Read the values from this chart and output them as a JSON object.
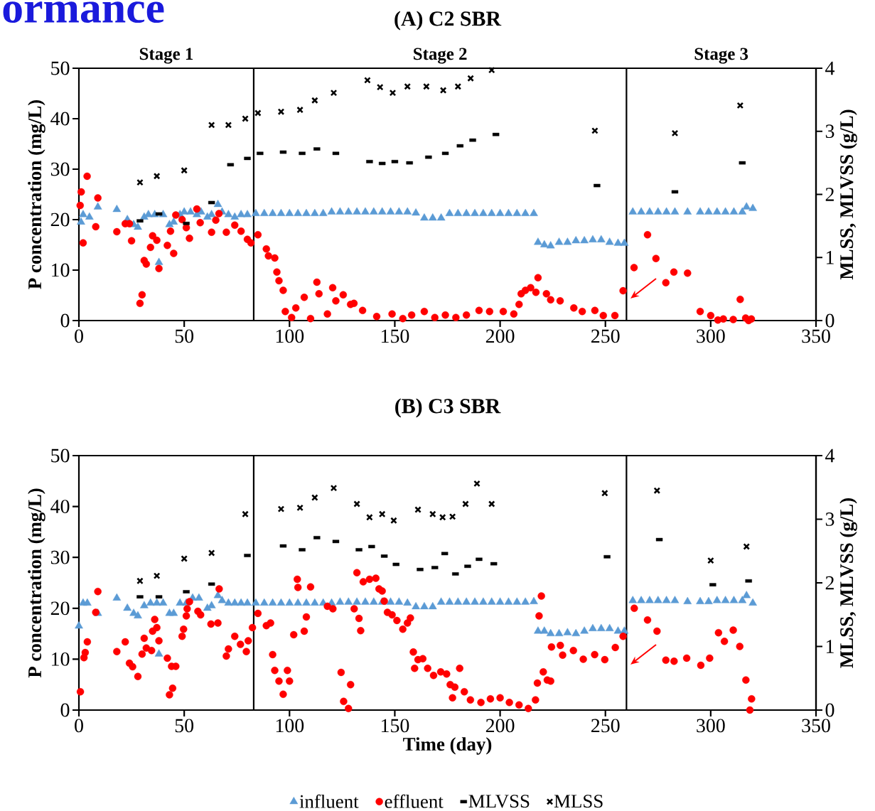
{
  "chart_data": [
    {
      "type": "scatter",
      "title": "(A) C2 SBR",
      "ylabel": "P concentration (mg/L)",
      "y2label": "MLSS, MLVSS (g/L)",
      "annotations": [
        "ormance",
        "Stage 1",
        "Stage 2",
        "Stage 3"
      ],
      "xlim": [
        0,
        350
      ],
      "xticks": [
        0,
        50,
        100,
        150,
        200,
        250,
        300,
        350
      ],
      "ylim": [
        0,
        50
      ],
      "yticks": [
        0,
        10,
        20,
        30,
        40,
        50
      ],
      "y2lim": [
        0,
        4
      ],
      "y2ticks": [
        0,
        1,
        2,
        3,
        4
      ],
      "ref_lines": [
        {
          "axis": "x",
          "value": 83,
          "color": "#000000"
        },
        {
          "axis": "x",
          "value": 260,
          "color": "#000000"
        }
      ],
      "series": [
        {
          "color": "#5b9bd5",
          "marker": "triangle",
          "x": [
            1,
            2,
            5,
            9,
            18,
            23,
            26,
            28,
            31,
            33,
            36,
            38,
            40,
            43,
            45,
            48,
            50,
            53,
            56,
            58,
            61,
            63,
            66,
            68,
            71,
            74,
            77,
            80,
            84,
            88,
            92,
            96,
            100,
            104,
            108,
            112,
            116,
            120,
            124,
            128,
            132,
            136,
            140,
            144,
            148,
            152,
            156,
            160,
            164,
            168,
            172,
            176,
            180,
            184,
            188,
            192,
            196,
            200,
            204,
            208,
            212,
            216,
            218,
            221,
            224,
            228,
            232,
            236,
            240,
            244,
            248,
            252,
            256,
            259,
            263,
            267,
            271,
            275,
            279,
            283,
            289,
            295,
            299,
            303,
            307,
            311,
            315,
            317,
            320
          ],
          "values": [
            19.5,
            21,
            20.5,
            22.5,
            22,
            20,
            19,
            18.5,
            20.5,
            21,
            21,
            11.5,
            21,
            19,
            19.5,
            21,
            21.5,
            21.5,
            21,
            21.5,
            20.5,
            21,
            23,
            21.5,
            21,
            20.5,
            21,
            21,
            21.2,
            21.2,
            21.2,
            21.2,
            21.2,
            21.2,
            21.2,
            21.2,
            21.2,
            21.5,
            21.5,
            21.5,
            21.5,
            21.5,
            21.5,
            21.5,
            21.5,
            21.5,
            21.5,
            21.3,
            20.3,
            20.3,
            20.3,
            21.2,
            21.2,
            21.2,
            21.2,
            21.2,
            21.2,
            21.2,
            21.2,
            21.2,
            21.2,
            21.2,
            15.5,
            15,
            14.8,
            15.5,
            15.5,
            15.8,
            15.8,
            16,
            16,
            15.5,
            15.3,
            15.3,
            21.5,
            21.5,
            21.5,
            21.5,
            21.5,
            21.5,
            21.5,
            21.5,
            21.5,
            21.5,
            21.5,
            21.5,
            21.5,
            22.5,
            22.2
          ]
        },
        {
          "color": "#ff0000",
          "marker": "circle",
          "x": [
            0.6,
            1.1,
            3.9,
            2,
            9,
            8,
            18,
            22,
            24,
            25,
            29,
            30,
            31,
            32,
            34,
            35,
            37,
            38,
            42,
            43.5,
            45,
            46,
            49,
            51,
            52.5,
            56,
            57.6,
            63,
            65,
            66.5,
            70,
            74,
            77,
            80,
            81.7,
            85,
            89,
            90,
            93,
            94,
            95,
            97,
            98,
            101,
            103,
            107,
            110,
            113,
            114,
            118,
            120.5,
            122,
            125.5,
            129,
            130.6,
            134.7,
            141.4,
            148.7,
            153.8,
            158,
            164,
            169,
            174,
            179,
            184,
            190,
            195,
            201.5,
            206.5,
            209,
            210,
            212,
            214.5,
            218,
            217,
            222,
            224,
            228.5,
            235,
            239,
            245,
            249,
            254.5,
            258.4,
            263.6,
            270,
            274,
            278.7,
            282.5,
            289,
            295,
            300,
            303.4,
            306,
            310.7,
            314,
            316.6,
            319.3,
            318
          ],
          "values": [
            22.8,
            25.5,
            28.6,
            15.4,
            24.3,
            18.6,
            17.6,
            19.2,
            19.2,
            15.8,
            3.4,
            5.1,
            11.9,
            11.2,
            14.5,
            16.8,
            15.9,
            10.3,
            14.9,
            17.7,
            13.3,
            20.9,
            20.0,
            18.4,
            16.3,
            22.1,
            19.4,
            17.5,
            19.9,
            21.2,
            17.5,
            18.9,
            17.7,
            16.1,
            15.4,
            17.0,
            14.2,
            12.8,
            12.4,
            9.6,
            7.9,
            6.0,
            1.8,
            0.6,
            2.5,
            4.6,
            0.4,
            7.6,
            5.3,
            1.3,
            6.5,
            3.9,
            5.1,
            3.2,
            3.4,
            2.0,
            0.8,
            1.3,
            0.4,
            1.1,
            1.8,
            0.6,
            1.1,
            0.6,
            1.1,
            2.0,
            1.8,
            1.8,
            1.3,
            3.2,
            5.3,
            6.0,
            6.5,
            8.5,
            5.6,
            5.3,
            4.1,
            3.9,
            2.5,
            1.8,
            2.0,
            1.0,
            1.0,
            5.9,
            10.5,
            17.0,
            12.3,
            7.5,
            9.6,
            9.4,
            1.8,
            1.0,
            0.1,
            0.3,
            0.2,
            4.2,
            0.5,
            0.3,
            0.0
          ]
        },
        {
          "color": "#000000",
          "marker": "square",
          "axis": "y2",
          "x": [
            29,
            38,
            51,
            63,
            72,
            80,
            86,
            97,
            106,
            113,
            122,
            138,
            144,
            150,
            157,
            166,
            174,
            181,
            187,
            198,
            246,
            283,
            315
          ],
          "values": [
            1.58,
            1.69,
            1.54,
            1.87,
            2.47,
            2.57,
            2.65,
            2.67,
            2.65,
            2.72,
            2.65,
            2.52,
            2.49,
            2.52,
            2.5,
            2.59,
            2.65,
            2.77,
            2.86,
            2.95,
            2.14,
            2.04,
            2.5
          ]
        },
        {
          "color": "#000000",
          "marker": "cross",
          "axis": "y2",
          "x": [
            29,
            37,
            50,
            63,
            71,
            79,
            85,
            96,
            105,
            112,
            121,
            137,
            143,
            149,
            156,
            165,
            173,
            180,
            186,
            196,
            245,
            283,
            314
          ],
          "values": [
            2.19,
            2.29,
            2.38,
            3.1,
            3.1,
            3.2,
            3.29,
            3.31,
            3.34,
            3.49,
            3.61,
            3.81,
            3.7,
            3.61,
            3.71,
            3.71,
            3.65,
            3.71,
            3.84,
            3.97,
            3.01,
            2.97,
            3.41
          ]
        }
      ]
    },
    {
      "type": "scatter",
      "title": "(B) C3 SBR",
      "xlabel": "Time (day)",
      "ylabel": "P concentration (mg/L)",
      "y2label": "MLSS, MLVSS (g/L)",
      "legend": "bottom",
      "xlim": [
        0,
        350
      ],
      "xticks": [
        0,
        50,
        100,
        150,
        200,
        250,
        300,
        350
      ],
      "ylim": [
        0,
        50
      ],
      "yticks": [
        0,
        10,
        20,
        30,
        40,
        50
      ],
      "y2lim": [
        0,
        4
      ],
      "y2ticks": [
        0,
        1,
        2,
        3,
        4
      ],
      "ref_lines": [
        {
          "axis": "x",
          "value": 83,
          "color": "#000000"
        },
        {
          "axis": "x",
          "value": 260,
          "color": "#000000"
        }
      ],
      "series": [
        {
          "name": "influent",
          "color": "#5b9bd5",
          "marker": "triangle",
          "x": [
            0,
            2,
            4,
            9,
            18,
            23,
            26,
            28,
            31,
            34,
            37,
            38,
            40,
            43,
            45,
            48,
            51,
            54,
            57,
            61,
            63,
            66,
            68,
            71,
            74,
            77,
            80,
            84,
            88,
            92,
            96,
            100,
            104,
            108,
            112,
            116,
            120,
            124,
            128,
            132,
            136,
            140,
            144,
            148,
            152,
            156,
            160,
            164,
            168,
            172,
            176,
            180,
            184,
            188,
            192,
            196,
            200,
            204,
            208,
            212,
            216,
            218,
            221,
            224,
            228,
            232,
            236,
            240,
            244,
            248,
            252,
            256,
            259,
            263,
            267,
            271,
            275,
            279,
            283,
            289,
            295,
            299,
            303,
            307,
            311,
            315,
            317,
            320
          ],
          "values": [
            16.5,
            21,
            21,
            19,
            22,
            20,
            19,
            18.5,
            20.5,
            21,
            21,
            11,
            21,
            19,
            19,
            21,
            21,
            22,
            22,
            20,
            20.5,
            22.5,
            21.5,
            21,
            21,
            21,
            21,
            21,
            21,
            21,
            21,
            21,
            21,
            21,
            21,
            21,
            21,
            21.2,
            21.2,
            21.2,
            21.2,
            21.2,
            21.2,
            21.2,
            21.2,
            21,
            20.3,
            20.3,
            20.3,
            21.2,
            21.2,
            21.2,
            21.2,
            21.2,
            21.2,
            21.2,
            21.2,
            21.2,
            21.2,
            21.2,
            21.3,
            15.5,
            15.5,
            15,
            15,
            15.2,
            15,
            15.5,
            16,
            16,
            16,
            15.5,
            15.5,
            21.5,
            21.5,
            21.5,
            21.5,
            21.5,
            21.5,
            21.3,
            21.3,
            21.3,
            21.5,
            21.5,
            21.5,
            21.5,
            22.5,
            21
          ]
        },
        {
          "name": "effluent",
          "color": "#ff0000",
          "marker": "circle",
          "x": [
            0.7,
            2.4,
            3,
            4,
            9,
            8,
            18,
            22,
            24,
            25.5,
            28,
            30,
            31,
            32,
            34.5,
            35,
            36,
            37,
            38,
            42,
            43,
            44.5,
            44,
            46,
            49,
            49.7,
            51,
            51.4,
            52.5,
            56.5,
            57.8,
            62.7,
            66,
            66.6,
            70,
            71,
            74,
            76.7,
            79.5,
            80.4,
            82.4,
            85,
            89,
            91,
            92,
            93,
            95,
            97,
            99,
            100,
            102,
            103.7,
            104,
            107,
            108,
            110,
            118,
            120.6,
            124.5,
            125.7,
            128,
            129,
            130.7,
            132,
            133,
            133.8,
            135,
            138,
            141,
            142.5,
            144,
            145,
            146.5,
            148.7,
            151,
            153.8,
            156,
            157.4,
            158.8,
            161,
            159.4,
            163.3,
            165.6,
            168.4,
            171.8,
            174.6,
            176.3,
            178.5,
            177.4,
            180.8,
            183,
            185.9,
            190.9,
            195.4,
            200,
            204.4,
            209,
            213.4,
            216.8,
            217.7,
            220.5,
            222.4,
            224,
            219.6,
            218.5,
            224.4,
            228.6,
            229.7,
            234.8,
            239.5,
            244.9,
            249.7,
            254.7,
            258.4,
            263.7,
            270,
            274.5,
            278.7,
            282.6,
            288.6,
            295.3,
            299.5,
            303.7,
            306.5,
            310.7,
            313.8,
            316.7,
            319.4,
            318.6
          ],
          "values": [
            3.6,
            10.3,
            11.3,
            13.4,
            23.3,
            19.2,
            11.5,
            13.4,
            9.2,
            8.5,
            6.6,
            11.0,
            14.1,
            12.2,
            11.7,
            15.5,
            17.8,
            16.2,
            13.6,
            10.2,
            3.0,
            4.3,
            8.6,
            8.6,
            14.5,
            15.9,
            18.5,
            19.9,
            21.3,
            19.4,
            18.7,
            16.9,
            17.1,
            23.8,
            10.6,
            12.0,
            14.5,
            12.9,
            11.5,
            13.6,
            16.2,
            19.0,
            16.6,
            17.1,
            10.9,
            7.8,
            5.7,
            3.1,
            7.8,
            5.7,
            14.8,
            25.7,
            24.1,
            15.5,
            18.3,
            24.2,
            20.4,
            19.9,
            7.4,
            1.7,
            0.3,
            5.0,
            19.9,
            27.0,
            18.0,
            15.6,
            25.2,
            25.7,
            25.9,
            23.8,
            23.4,
            21.4,
            19.2,
            18.7,
            17.6,
            15.9,
            17.1,
            18.1,
            11.4,
            9.9,
            8.2,
            10.1,
            8.2,
            6.8,
            7.5,
            7.1,
            5.0,
            4.5,
            2.4,
            8.2,
            3.6,
            2.0,
            1.5,
            2.2,
            2.4,
            1.5,
            1.0,
            0.3,
            2.0,
            5.3,
            7.5,
            5.9,
            5.7,
            22.4,
            18.5,
            12.4,
            12.7,
            10.8,
            11.7,
            10.0,
            10.9,
            9.9,
            12.3,
            14.5,
            20.0,
            17.7,
            15.5,
            9.8,
            9.6,
            10.2,
            8.8,
            10.2,
            15.2,
            13.5,
            15.7,
            12.5,
            5.9,
            2.2,
            0.0
          ]
        },
        {
          "name": "MLVSS",
          "color": "#000000",
          "marker": "square",
          "axis": "y2",
          "x": [
            29,
            38,
            51,
            63,
            80,
            97,
            106,
            113,
            122,
            133,
            139,
            145,
            150.6,
            162,
            169,
            173.7,
            178.8,
            184.6,
            190,
            197,
            250.8,
            275.6,
            301,
            318
          ],
          "values": [
            1.78,
            1.78,
            1.86,
            1.98,
            2.43,
            2.58,
            2.52,
            2.71,
            2.65,
            2.52,
            2.57,
            2.42,
            2.29,
            2.21,
            2.24,
            2.46,
            2.14,
            2.26,
            2.37,
            2.3,
            2.41,
            2.68,
            1.97,
            2.03
          ]
        },
        {
          "name": "MLSS",
          "color": "#000000",
          "marker": "cross",
          "axis": "y2",
          "x": [
            29,
            37,
            50,
            63,
            79,
            96,
            105,
            112,
            121,
            132,
            138,
            144,
            149.5,
            161,
            168,
            172.7,
            177.4,
            183.6,
            189,
            196,
            249.7,
            274.5,
            300,
            317
          ],
          "values": [
            2.03,
            2.11,
            2.38,
            2.47,
            3.08,
            3.16,
            3.18,
            3.34,
            3.49,
            3.24,
            3.03,
            3.08,
            2.98,
            3.15,
            3.08,
            3.03,
            3.04,
            3.24,
            3.56,
            3.24,
            3.41,
            3.45,
            2.35,
            2.57
          ]
        }
      ]
    }
  ]
}
